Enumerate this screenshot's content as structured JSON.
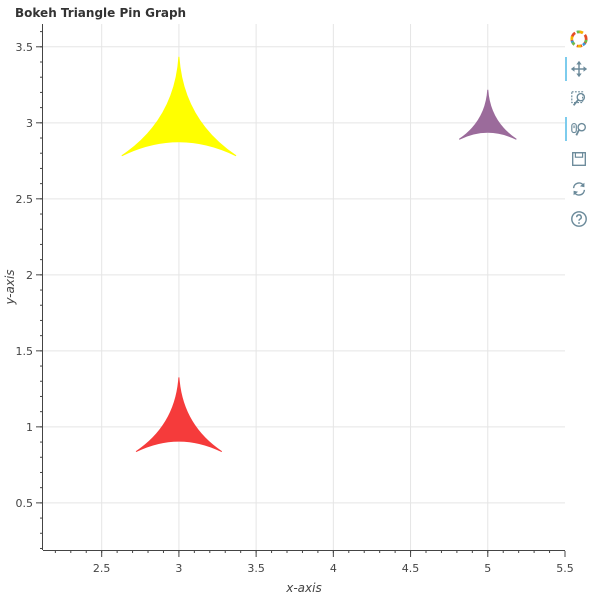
{
  "chart_data": {
    "type": "scatter",
    "marker": "triangle_pin",
    "title": "Bokeh Triangle Pin Graph",
    "xlabel": "x-axis",
    "ylabel": "y-axis",
    "xlim": [
      2.12,
      5.5
    ],
    "ylim": [
      0.19,
      3.65
    ],
    "xticks": [
      2.5,
      3,
      3.5,
      4,
      4.5,
      5,
      5.5
    ],
    "xtick_labels": [
      "2.5",
      "3",
      "3.5",
      "4",
      "4.5",
      "5",
      "5.5"
    ],
    "yticks": [
      0.5,
      1,
      1.5,
      2,
      2.5,
      3,
      3.5
    ],
    "ytick_labels": [
      "0.5",
      "1",
      "1.5",
      "2",
      "2.5",
      "3",
      "3.5"
    ],
    "grid": true,
    "points": [
      {
        "x": 3,
        "y": 3,
        "size": 1.0,
        "color": "#ffff00"
      },
      {
        "x": 3,
        "y": 1,
        "size": 0.75,
        "color": "#f53b3b"
      },
      {
        "x": 5,
        "y": 3,
        "size": 0.5,
        "color": "#9b6b9b"
      }
    ]
  },
  "toolbar": {
    "tools": [
      {
        "name": "bokeh-logo-icon",
        "active": false
      },
      {
        "name": "pan-tool-icon",
        "active": true
      },
      {
        "name": "box-zoom-tool-icon",
        "active": false
      },
      {
        "name": "wheel-zoom-tool-icon",
        "active": true
      },
      {
        "name": "save-tool-icon",
        "active": false
      },
      {
        "name": "reset-tool-icon",
        "active": false
      },
      {
        "name": "help-tool-icon",
        "active": false
      }
    ]
  }
}
